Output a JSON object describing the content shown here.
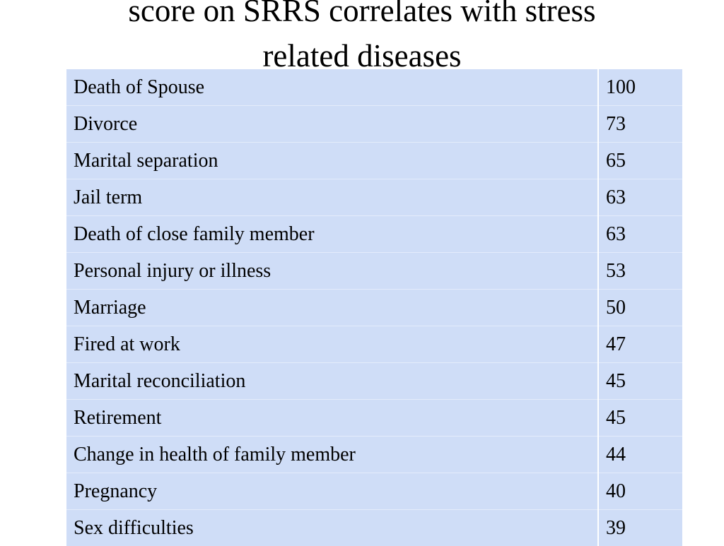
{
  "slide": {
    "title_lines": [
      "score on SRRS correlates with stress",
      "related diseases"
    ]
  },
  "table": {
    "rows": [
      {
        "event": "Death of Spouse",
        "value": "100"
      },
      {
        "event": "Divorce",
        "value": "73"
      },
      {
        "event": "Marital separation",
        "value": "65"
      },
      {
        "event": "Jail term",
        "value": "63"
      },
      {
        "event": "Death of close family member",
        "value": "63"
      },
      {
        "event": "Personal injury or illness",
        "value": "53"
      },
      {
        "event": "Marriage",
        "value": "50"
      },
      {
        "event": "Fired at work",
        "value": "47"
      },
      {
        "event": "Marital reconciliation",
        "value": "45"
      },
      {
        "event": "Retirement",
        "value": "45"
      },
      {
        "event": "Change in health of family member",
        "value": "44"
      },
      {
        "event": "Pregnancy",
        "value": "40"
      },
      {
        "event": "Sex difficulties",
        "value": "39"
      }
    ]
  },
  "colors": {
    "table_background": "#cfddf7",
    "page_background": "#ffffff",
    "text": "#000000"
  }
}
